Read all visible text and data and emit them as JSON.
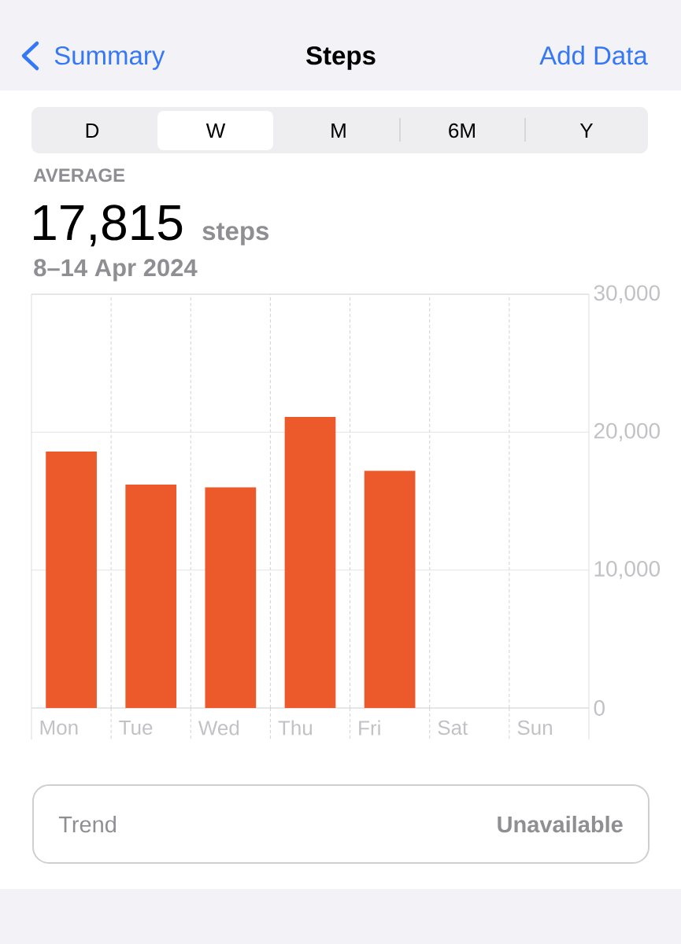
{
  "chart_data": {
    "type": "bar",
    "title": "Steps",
    "subtitle": "8–14 Apr 2024",
    "annotations": [
      "Summary",
      "Add Data",
      "D",
      "W",
      "M",
      "6M",
      "Y",
      "AVERAGE",
      "17,815",
      "steps",
      "Trend",
      "Unavailable"
    ],
    "categories": [
      "Mon",
      "Tue",
      "Wed",
      "Thu",
      "Fri",
      "Sat",
      "Sun"
    ],
    "values": [
      18600,
      16200,
      16000,
      21100,
      17200,
      null,
      null
    ],
    "color": "#ec5a2b",
    "ylim": [
      0,
      30000
    ],
    "yticks": [
      0,
      {
        "value": 10000,
        "label": "10,000"
      },
      {
        "value": 20000,
        "label": "20,000"
      },
      {
        "value": 30000,
        "label": "30,000"
      }
    ],
    "grid": true
  }
}
